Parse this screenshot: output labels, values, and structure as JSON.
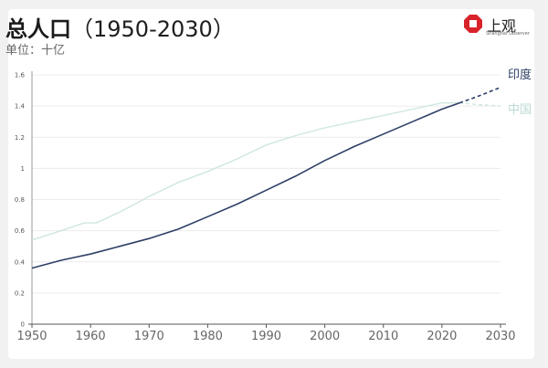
{
  "title_main": "总人口",
  "title_years": "（1950-2030）",
  "unit_label": "单位：十亿",
  "logo": {
    "name": "上观",
    "sub": "Shanghai Observer",
    "color": "#d8232a"
  },
  "chart_data": {
    "type": "line",
    "title": "总人口（1950-2030）",
    "ylabel": "单位：十亿",
    "xlim": [
      1950,
      2030
    ],
    "ylim": [
      0,
      1.6
    ],
    "xticks": [
      1950,
      1960,
      1970,
      1980,
      1990,
      2000,
      2010,
      2020,
      2030
    ],
    "yticks": [
      0,
      0.2,
      0.4,
      0.6,
      0.8,
      1,
      1.2,
      1.4,
      1.6
    ],
    "grid": true,
    "series": [
      {
        "name": "印度",
        "color": "#2d3f66",
        "x": [
          1950,
          1955,
          1960,
          1965,
          1970,
          1975,
          1980,
          1985,
          1990,
          1995,
          2000,
          2005,
          2010,
          2015,
          2020,
          2023
        ],
        "y": [
          0.36,
          0.41,
          0.45,
          0.5,
          0.55,
          0.61,
          0.69,
          0.77,
          0.86,
          0.95,
          1.05,
          1.14,
          1.22,
          1.3,
          1.38,
          1.42
        ],
        "projection": {
          "x": [
            2023,
            2026,
            2030
          ],
          "y": [
            1.42,
            1.46,
            1.52
          ]
        }
      },
      {
        "name": "中国",
        "color": "#cfe6e0",
        "x": [
          1950,
          1955,
          1959,
          1961,
          1965,
          1970,
          1975,
          1980,
          1985,
          1990,
          1995,
          2000,
          2005,
          2010,
          2015,
          2020,
          2023
        ],
        "y": [
          0.54,
          0.6,
          0.65,
          0.65,
          0.72,
          0.82,
          0.91,
          0.98,
          1.06,
          1.15,
          1.21,
          1.26,
          1.3,
          1.34,
          1.38,
          1.42,
          1.42
        ],
        "projection": {
          "x": [
            2023,
            2026,
            2030
          ],
          "y": [
            1.42,
            1.41,
            1.4
          ]
        }
      }
    ]
  }
}
